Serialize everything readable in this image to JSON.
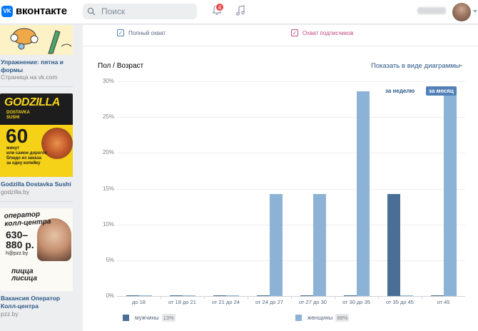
{
  "header": {
    "logo_mark": "VK",
    "logo_text": "вконтакте",
    "search_placeholder": "Поиск",
    "notifications_count": "4"
  },
  "ads": [
    {
      "title": "Упражнение: пятна и формы",
      "domain": "Страница на vk.com"
    },
    {
      "title": "Godzilla Dostavka Sushi",
      "domain": "godzilla.by",
      "image_text": {
        "title": "GODZILLA",
        "sub": "DOSTAVKA\nSUSHI",
        "big": "60",
        "min": "минут\nили самое дорогое\nблюдо из заказа\nза одну копейку"
      }
    },
    {
      "title": "Вакансия Оператор Колл-центра",
      "domain": "pzz.by",
      "image_text": {
        "title": "оператор\nколл-центра",
        "price": "630–\n880 р.",
        "mail": "h@pzz.by",
        "slogan": "пицца\nлисица"
      }
    }
  ],
  "filters": [
    {
      "label": "Полный охват",
      "checked": true,
      "color": "#5181b8"
    },
    {
      "label": "Охват подписчиков",
      "checked": true,
      "color": "#c14b7e"
    }
  ],
  "section_title": "Пол / Возраст",
  "diagram_link": "Показать в виде диаграммы",
  "periods": {
    "week": "за неделю",
    "month": "за месяц",
    "active": "month"
  },
  "chart_data": {
    "type": "bar",
    "categories": [
      "до 18",
      "от 18 до 21",
      "от 21 до 24",
      "от 24 до 27",
      "от 27 до 30",
      "от 30 до 35",
      "от 35 до 45",
      "от 45"
    ],
    "y_ticks": [
      "0%",
      "5%",
      "10%",
      "15%",
      "20%",
      "25%",
      "30%"
    ],
    "ylim": [
      0,
      30
    ],
    "grid": true,
    "legend_position": "bottom",
    "series": [
      {
        "name": "мужчины",
        "percent": "13%",
        "color": "#4a6f96",
        "values": [
          0,
          0,
          0,
          0,
          0,
          0,
          14.3,
          0
        ]
      },
      {
        "name": "женщины",
        "percent": "88%",
        "color": "#8cb3d6",
        "values": [
          0,
          0,
          0,
          14.3,
          14.3,
          28.6,
          0,
          28.6
        ]
      }
    ]
  }
}
